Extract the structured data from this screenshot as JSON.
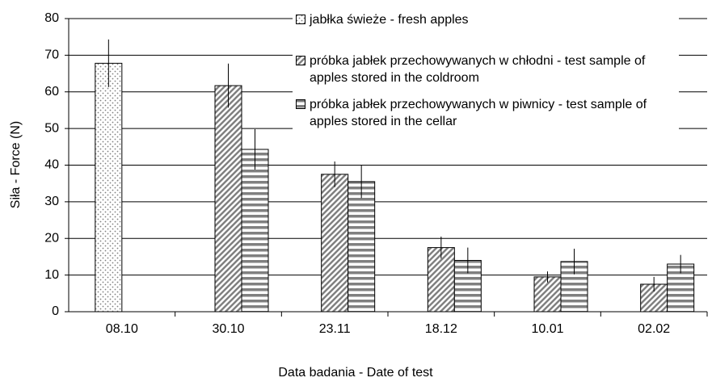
{
  "chart_data": {
    "type": "bar",
    "categories": [
      "08.10",
      "30.10",
      "23.11",
      "18.12",
      "10.01",
      "02.02"
    ],
    "series": [
      {
        "name": "jabłka świeże - fresh apples",
        "color": "#808080",
        "pattern": "dots",
        "values": [
          67.8,
          null,
          null,
          null,
          null,
          null
        ],
        "errors": [
          6.5,
          null,
          null,
          null,
          null,
          null
        ]
      },
      {
        "name": "próbka jabłek przechowywanych w chłodni - test sample of apples stored in the coldroom",
        "color": "#808080",
        "pattern": "diagonal",
        "values": [
          null,
          61.7,
          37.5,
          17.5,
          9.5,
          7.5
        ],
        "errors": [
          null,
          6,
          3.5,
          3,
          1.5,
          2
        ]
      },
      {
        "name": "próbka jabłek przechowywanych w piwnicy - test sample of apples stored in the cellar",
        "color": "#808080",
        "pattern": "horizontal",
        "values": [
          null,
          44.3,
          35.5,
          14,
          13.7,
          13
        ],
        "errors": [
          null,
          5.5,
          4.5,
          3.5,
          3.5,
          2.5
        ]
      }
    ],
    "xlabel": "Data badania - Date of test",
    "ylabel": "Siła - Force (N)",
    "ylim": [
      0,
      80
    ],
    "yticks": [
      0,
      10,
      20,
      30,
      40,
      50,
      60,
      70,
      80
    ],
    "grid": true
  }
}
